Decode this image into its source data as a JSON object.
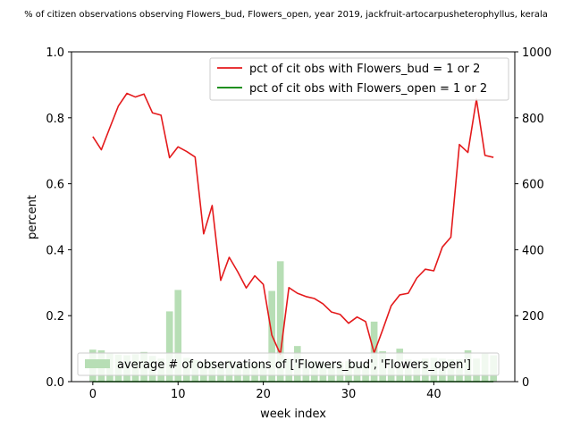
{
  "chart_data": {
    "type": "line",
    "title": "% of citizen observations observing Flowers_bud, Flowers_open, year 2019, jackfruit-artocarpusheterophyllus, kerala",
    "xlabel": "week index",
    "ylabel": "percent",
    "xlim": [
      -2.5,
      49.5
    ],
    "ylim": [
      0,
      1.0
    ],
    "y2lim": [
      0,
      1000
    ],
    "xticks": [
      "0",
      "10",
      "20",
      "30",
      "40"
    ],
    "yticks": [
      "0.0",
      "0.2",
      "0.4",
      "0.6",
      "0.8",
      "1.0"
    ],
    "y2ticks": [
      "0",
      "200",
      "400",
      "600",
      "800",
      "1000"
    ],
    "x": [
      0,
      1,
      2,
      3,
      4,
      5,
      6,
      7,
      8,
      9,
      10,
      11,
      12,
      13,
      14,
      15,
      16,
      17,
      18,
      19,
      20,
      21,
      22,
      23,
      24,
      25,
      26,
      27,
      28,
      29,
      30,
      31,
      32,
      33,
      34,
      35,
      36,
      37,
      38,
      39,
      40,
      41,
      42,
      43,
      44,
      45,
      46,
      47
    ],
    "series": [
      {
        "name": "pct of cit obs with Flowers_bud = 1 or 2",
        "color": "#e41a1c",
        "axis": "left",
        "values": [
          0.743,
          0.703,
          0.77,
          0.836,
          0.874,
          0.863,
          0.872,
          0.815,
          0.808,
          0.679,
          0.712,
          0.698,
          0.681,
          0.448,
          0.534,
          0.307,
          0.377,
          0.333,
          0.284,
          0.321,
          0.295,
          0.141,
          0.083,
          0.285,
          0.268,
          0.258,
          0.252,
          0.236,
          0.211,
          0.204,
          0.177,
          0.196,
          0.182,
          0.087,
          0.157,
          0.23,
          0.263,
          0.268,
          0.314,
          0.341,
          0.336,
          0.408,
          0.438,
          0.719,
          0.695,
          0.856,
          0.686,
          0.68
        ]
      },
      {
        "name": "pct of cit obs with Flowers_open = 1 or 2",
        "color": "#008000",
        "axis": "left",
        "values": [
          0,
          0,
          0,
          0,
          0,
          0,
          0,
          0,
          0,
          0,
          0,
          0,
          0,
          0,
          0,
          0,
          0,
          0,
          0,
          0,
          0,
          0,
          0,
          0,
          0,
          0,
          0,
          0,
          0,
          0,
          0,
          0,
          0,
          0,
          0,
          0,
          0,
          0,
          0,
          0,
          0,
          0,
          0,
          0,
          0,
          0,
          0,
          0
        ]
      },
      {
        "name": "average # of observations of ['Flowers_bud', 'Flowers_open']",
        "type": "bar",
        "color": "#b7deb5",
        "axis": "right",
        "values": [
          97,
          95,
          85,
          82,
          80,
          83,
          90,
          78,
          70,
          213,
          278,
          72,
          65,
          60,
          62,
          58,
          65,
          60,
          58,
          55,
          60,
          275,
          365,
          70,
          108,
          65,
          62,
          58,
          55,
          58,
          62,
          60,
          55,
          182,
          92,
          68,
          100,
          68,
          65,
          70,
          72,
          70,
          68,
          68,
          95,
          70,
          85,
          80
        ]
      }
    ],
    "legend_upper": "top-right",
    "legend_lower": "bottom"
  }
}
